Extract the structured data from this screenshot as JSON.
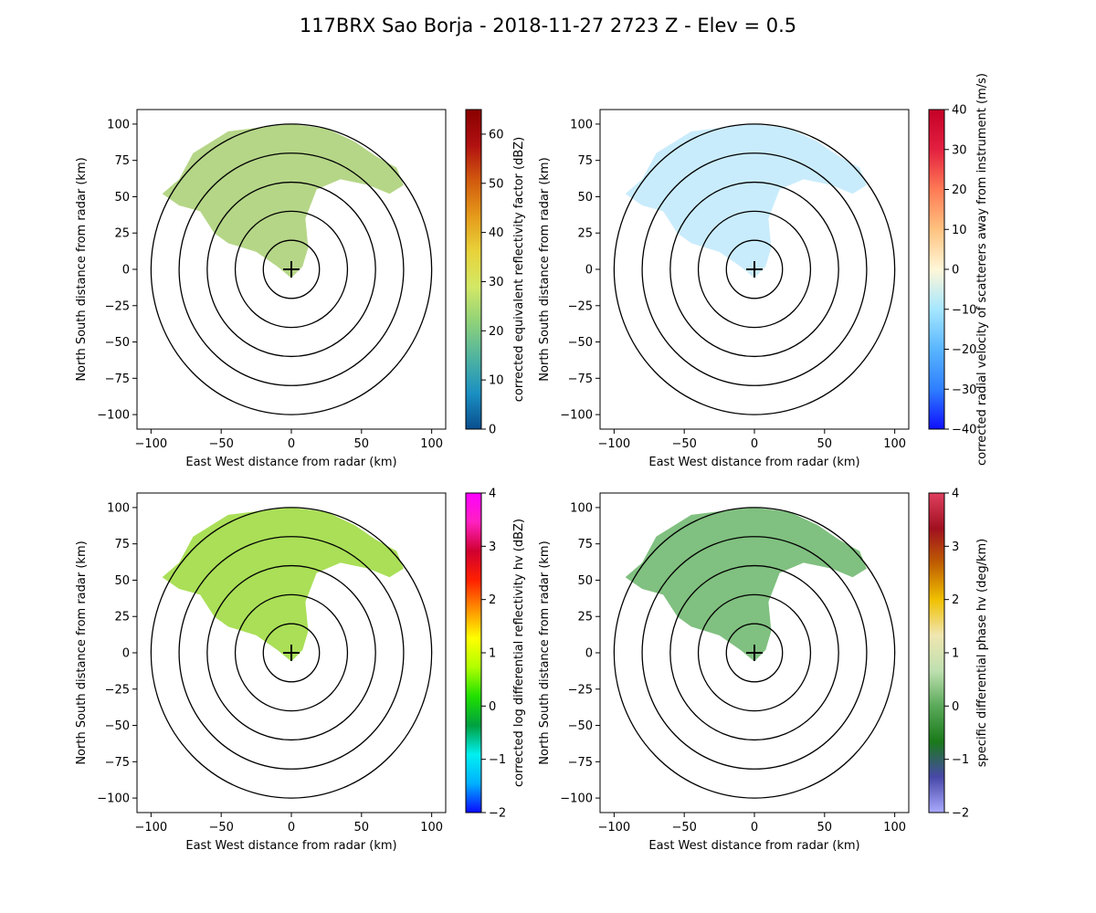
{
  "title": "117BRX Sao Borja - 2018-11-27 2723 Z -  Elev = 0.5",
  "chart_data": [
    {
      "type": "heatmap",
      "xlabel": "East West distance from radar (km)",
      "ylabel": "North South distance from radar (km)",
      "xlim": [
        -110,
        110
      ],
      "ylim": [
        -110,
        110
      ],
      "xticks": [
        -100,
        -50,
        0,
        50,
        100
      ],
      "yticks": [
        100,
        75,
        50,
        25,
        0,
        -25,
        -50,
        -75,
        -100
      ],
      "range_rings_km": [
        20,
        40,
        60,
        80,
        100
      ],
      "colorbar": {
        "label": "corrected equivalent reflectivity factor (dBZ)",
        "range": [
          0,
          65
        ],
        "ticks": [
          0,
          10,
          20,
          30,
          40,
          50,
          60
        ],
        "colors": [
          "#0a4e8e",
          "#1a8fc2",
          "#4fb3a0",
          "#8ed17a",
          "#d3e866",
          "#e8d33a",
          "#e59a1a",
          "#d15a0e",
          "#b01010",
          "#8a0000"
        ]
      },
      "echo_color": "#a8cf72"
    },
    {
      "type": "heatmap",
      "xlabel": "East West distance from radar (km)",
      "ylabel": "North South distance from radar (km)",
      "xlim": [
        -110,
        110
      ],
      "ylim": [
        -110,
        110
      ],
      "xticks": [
        -100,
        -50,
        0,
        50,
        100
      ],
      "yticks": [
        100,
        75,
        50,
        25,
        0,
        -25,
        -50,
        -75,
        -100
      ],
      "range_rings_km": [
        20,
        40,
        60,
        80,
        100
      ],
      "colorbar": {
        "label": "corrected radial velocity of scatterers away from instrument (m/s)",
        "range": [
          -40,
          40
        ],
        "ticks": [
          -40,
          -30,
          -20,
          -10,
          0,
          10,
          20,
          30,
          40
        ],
        "colors": [
          "#1010ff",
          "#2f7fff",
          "#59b6ff",
          "#a6e7ff",
          "#fff7d8",
          "#ffc27f",
          "#ff7a55",
          "#e32040",
          "#c40028"
        ]
      },
      "echo_color": "#bfe9fb"
    },
    {
      "type": "heatmap",
      "xlabel": "East West distance from radar (km)",
      "ylabel": "North South distance from radar (km)",
      "xlim": [
        -110,
        110
      ],
      "ylim": [
        -110,
        110
      ],
      "xticks": [
        -100,
        -50,
        0,
        50,
        100
      ],
      "yticks": [
        100,
        75,
        50,
        25,
        0,
        -25,
        -50,
        -75,
        -100
      ],
      "range_rings_km": [
        20,
        40,
        60,
        80,
        100
      ],
      "colorbar": {
        "label": "corrected log differential reflectivity hv (dBZ)",
        "range": [
          -2,
          4
        ],
        "ticks": [
          -2,
          -1,
          0,
          1,
          2,
          3,
          4
        ],
        "colors": [
          "#0a0aff",
          "#00b0ff",
          "#00f0f0",
          "#00a040",
          "#20e000",
          "#b0ff00",
          "#ffff00",
          "#ff9000",
          "#ff2000",
          "#d00030",
          "#ff20c0",
          "#ff00ff"
        ]
      },
      "echo_color": "#9bd93a"
    },
    {
      "type": "heatmap",
      "xlabel": "East West distance from radar (km)",
      "ylabel": "North South distance from radar (km)",
      "xlim": [
        -110,
        110
      ],
      "ylim": [
        -110,
        110
      ],
      "xticks": [
        -100,
        -50,
        0,
        50,
        100
      ],
      "yticks": [
        100,
        75,
        50,
        25,
        0,
        -25,
        -50,
        -75,
        -100
      ],
      "range_rings_km": [
        20,
        40,
        60,
        80,
        100
      ],
      "colorbar": {
        "label": "specific differential phase hv (deg/km)",
        "range": [
          -2,
          4
        ],
        "ticks": [
          -2,
          -1,
          0,
          1,
          2,
          3,
          4
        ],
        "colors": [
          "#aaaaff",
          "#4848a8",
          "#1a7a1a",
          "#5aaa5a",
          "#bfe0b0",
          "#f0e6b0",
          "#f0c000",
          "#c06000",
          "#a01020",
          "#e04060"
        ]
      },
      "echo_color": "#6ab56a"
    }
  ]
}
